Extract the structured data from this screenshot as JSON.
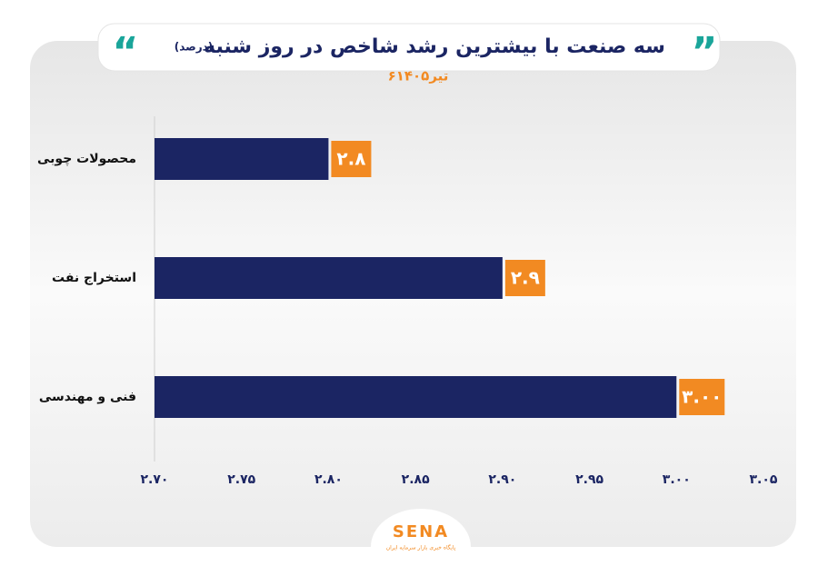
{
  "chart_data": {
    "type": "barh",
    "title": "سه صنعت با بیشترین رشد شاخص در روز شنبه",
    "unit": "(درصد)",
    "subtitle": "۶تیر۱۴۰۵",
    "categories": [
      "محصولات چوبی",
      "استخراج نفت",
      "فنی و مهندسی"
    ],
    "values": [
      2.8,
      2.9,
      3.0
    ],
    "value_labels": [
      "۲.۸",
      "۲.۹",
      "۳.۰۰"
    ],
    "color": "#1b2563",
    "label_color": "#f28a22",
    "xlim": [
      2.7,
      3.05
    ],
    "xticks": [
      {
        "value": 2.7,
        "label": "۲.۷۰"
      },
      {
        "value": 2.75,
        "label": "۲.۷۵"
      },
      {
        "value": 2.8,
        "label": "۲.۸۰"
      },
      {
        "value": 2.85,
        "label": "۲.۸۵"
      },
      {
        "value": 2.9,
        "label": "۲.۹۰"
      },
      {
        "value": 2.95,
        "label": "۲.۹۵"
      },
      {
        "value": 3.0,
        "label": "۳.۰۰"
      },
      {
        "value": 3.05,
        "label": "۳.۰۵"
      }
    ],
    "grid": false
  },
  "logo": {
    "text": "SENA",
    "tagline": "پایگاه خبری بازار سرمایه ایران"
  }
}
